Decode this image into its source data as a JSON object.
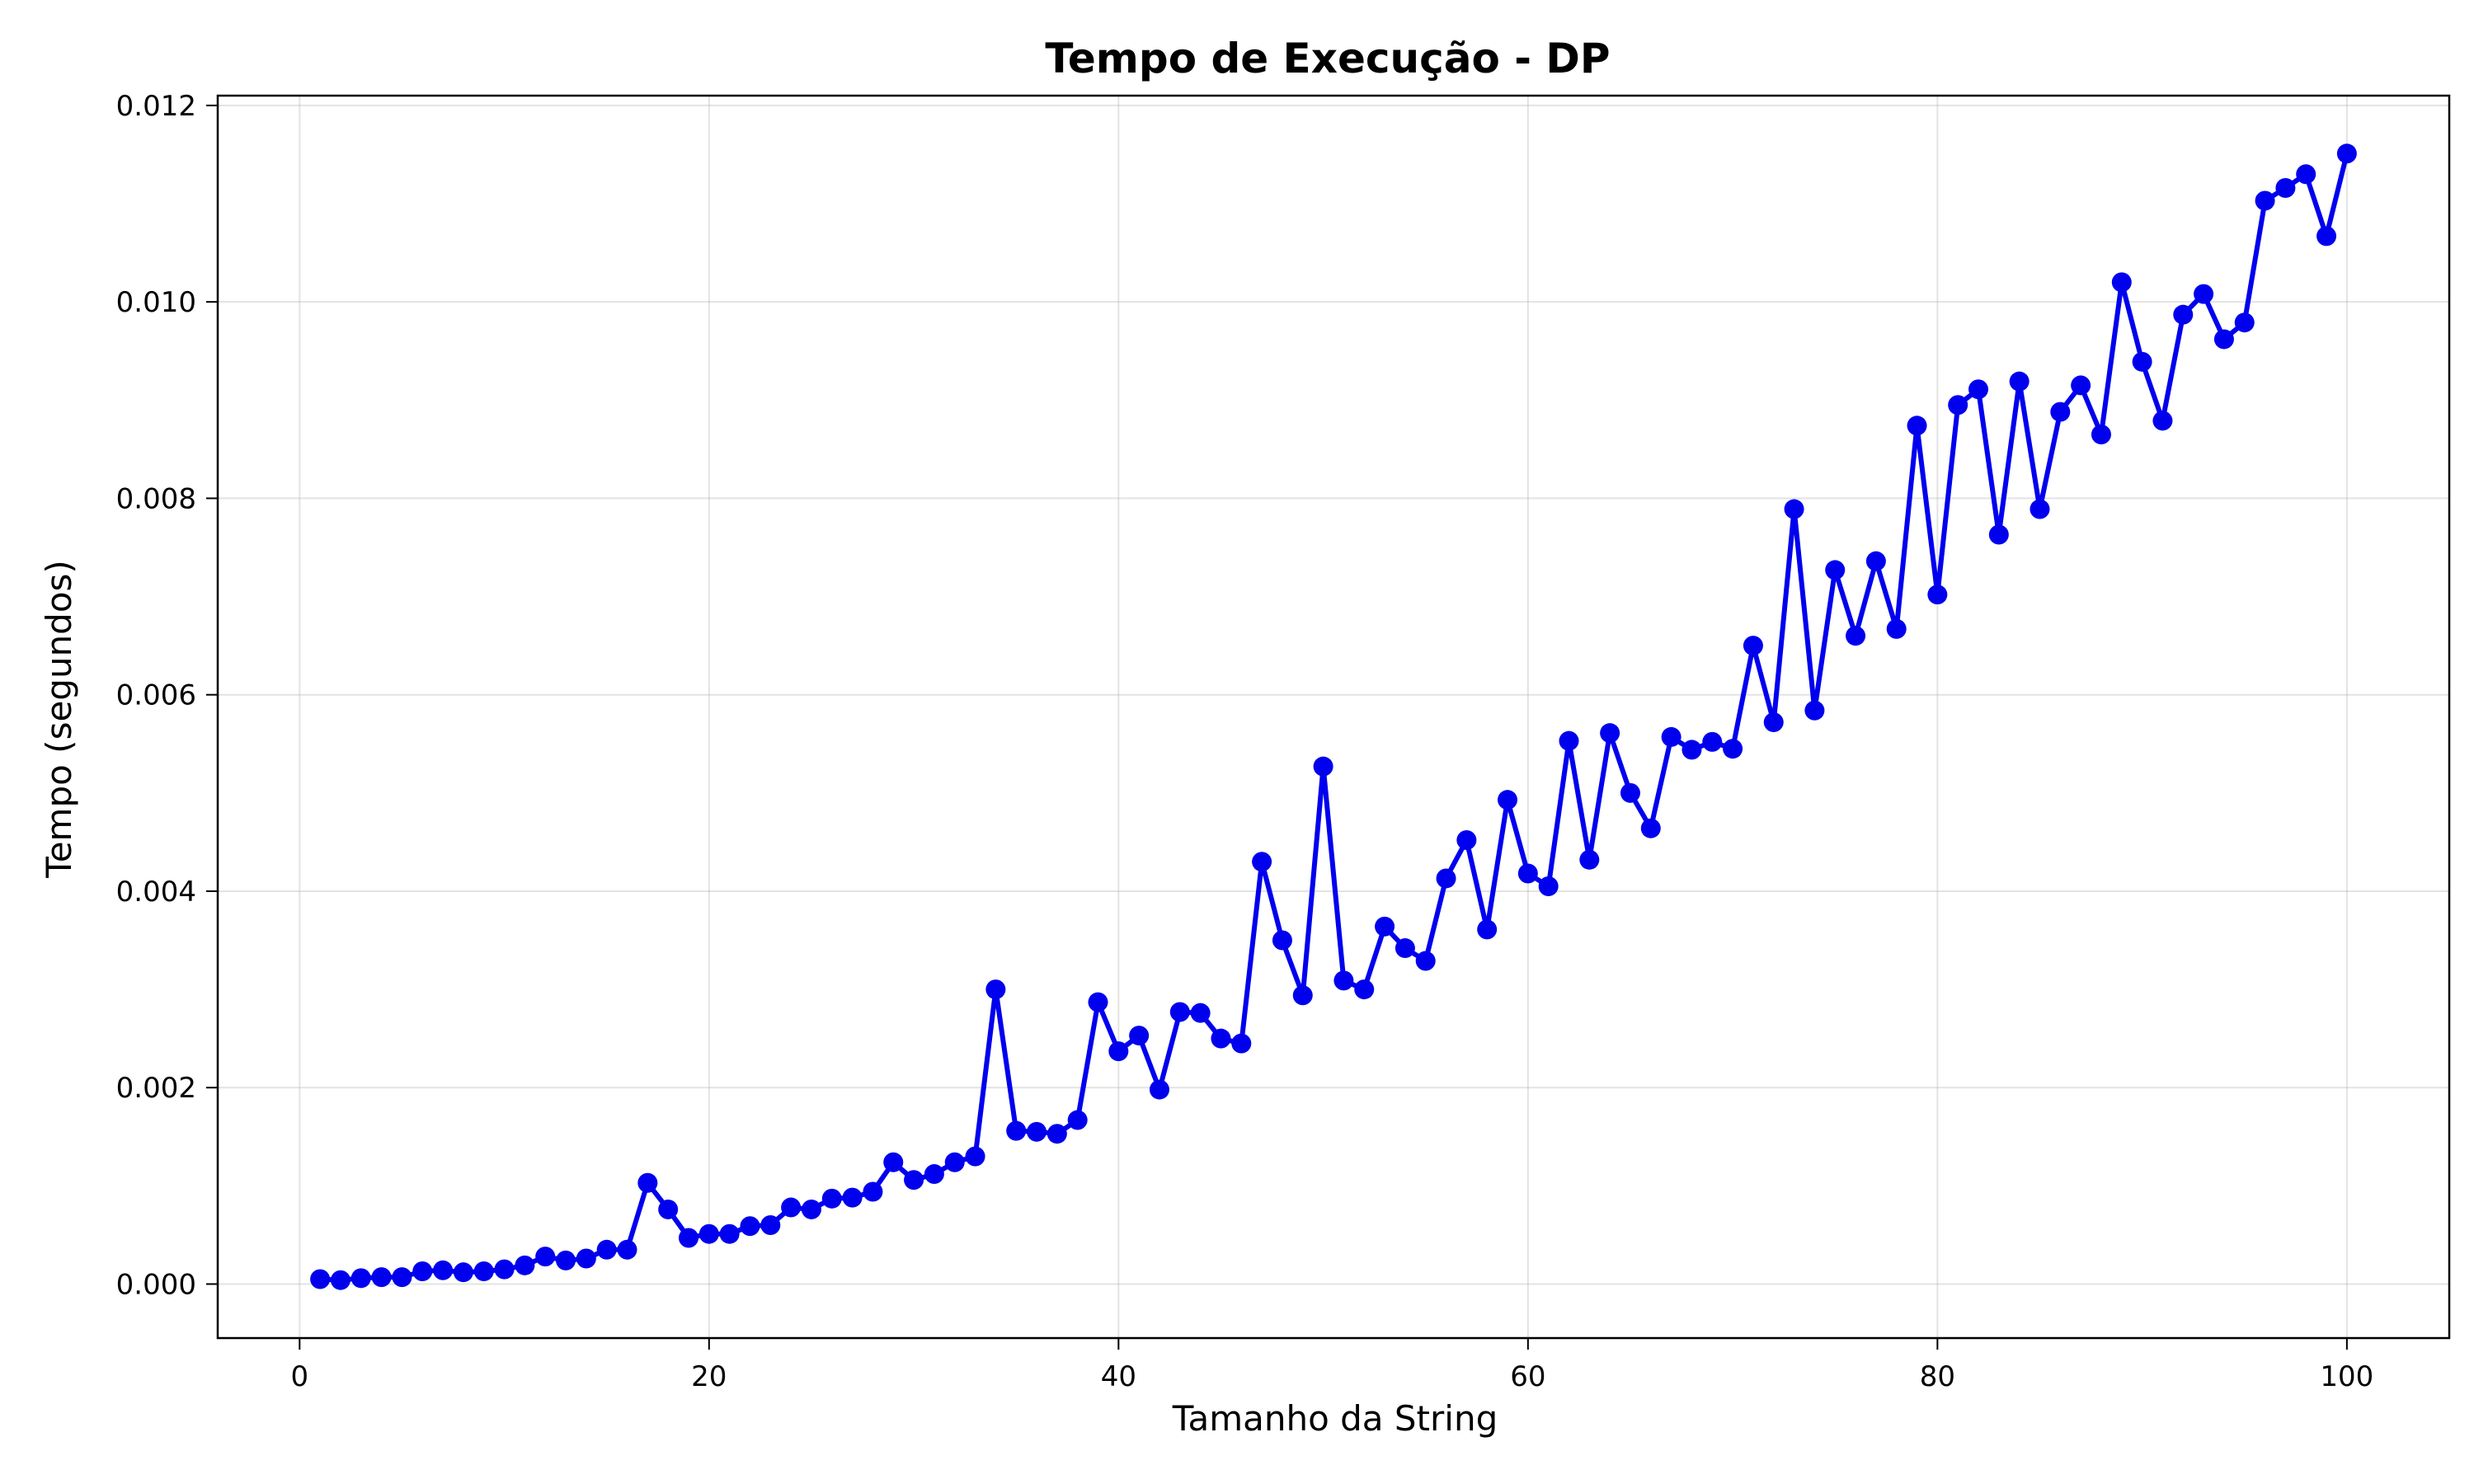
{
  "chart_data": {
    "type": "line",
    "title": "Tempo de Execução - DP",
    "xlabel": "Tamanho da String",
    "ylabel": "Tempo (segundos)",
    "xlim": [
      -4,
      105
    ],
    "ylim": [
      -0.00055,
      0.0121
    ],
    "xticks": [
      0,
      20,
      40,
      60,
      80,
      100
    ],
    "xtick_labels": [
      "0",
      "20",
      "40",
      "60",
      "80",
      "100"
    ],
    "yticks": [
      0,
      0.002,
      0.004,
      0.006,
      0.008,
      0.01,
      0.012
    ],
    "ytick_labels": [
      "0.000",
      "0.002",
      "0.004",
      "0.006",
      "0.008",
      "0.010",
      "0.012"
    ],
    "grid": true,
    "color": "#0000ee",
    "marker": "circle",
    "series": [
      {
        "x": [
          1,
          2,
          3,
          4,
          5,
          6,
          7,
          8,
          9,
          10,
          11,
          12,
          13,
          14,
          15,
          16,
          17,
          18,
          19,
          20,
          21,
          22,
          23,
          24,
          25,
          26,
          27,
          28,
          29,
          30,
          31,
          32,
          33,
          34,
          35,
          36,
          37,
          38,
          39,
          40,
          41,
          42,
          43,
          44,
          45,
          46,
          47,
          48,
          49,
          50,
          51,
          52,
          53,
          54,
          55,
          56,
          57,
          58,
          59,
          60,
          61,
          62,
          63,
          64,
          65,
          66,
          67,
          68,
          69,
          70,
          71,
          72,
          73,
          74,
          75,
          76,
          77,
          78,
          79,
          80,
          81,
          82,
          83,
          84,
          85,
          86,
          87,
          88,
          89,
          90,
          91,
          92,
          93,
          94,
          95,
          96,
          97,
          98,
          99,
          100
        ],
        "y": [
          5e-05,
          4e-05,
          6e-05,
          7e-05,
          7e-05,
          0.00013,
          0.00014,
          0.00012,
          0.00013,
          0.00015,
          0.00019,
          0.00028,
          0.00024,
          0.00026,
          0.00035,
          0.00035,
          0.00103,
          0.00076,
          0.00047,
          0.00051,
          0.00051,
          0.00059,
          0.0006,
          0.00078,
          0.00076,
          0.00087,
          0.00088,
          0.00094,
          0.00124,
          0.00106,
          0.00112,
          0.00124,
          0.0013,
          0.003,
          0.00156,
          0.00155,
          0.00153,
          0.00167,
          0.00287,
          0.00237,
          0.00253,
          0.00198,
          0.00277,
          0.00276,
          0.0025,
          0.00245,
          0.0043,
          0.0035,
          0.00294,
          0.00527,
          0.00309,
          0.003,
          0.00364,
          0.00342,
          0.00329,
          0.00413,
          0.00452,
          0.00361,
          0.00493,
          0.00418,
          0.00405,
          0.00553,
          0.00432,
          0.00561,
          0.005,
          0.00464,
          0.00557,
          0.00544,
          0.00552,
          0.00545,
          0.0065,
          0.00572,
          0.00789,
          0.00584,
          0.00727,
          0.0066,
          0.00736,
          0.00667,
          0.00874,
          0.00702,
          0.00895,
          0.00911,
          0.00763,
          0.00919,
          0.00789,
          0.00888,
          0.00915,
          0.00865,
          0.0102,
          0.00939,
          0.00879,
          0.00987,
          0.01008,
          0.00962,
          0.00979,
          0.01103,
          0.01116,
          0.0113,
          0.01067,
          0.01151
        ]
      }
    ]
  }
}
